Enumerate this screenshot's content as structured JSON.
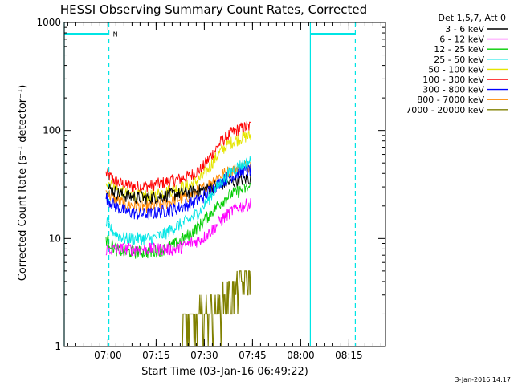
{
  "chart_data": {
    "type": "line",
    "title": "HESSI Observing Summary Count Rates, Corrected",
    "xlabel": "Start Time (03-Jan-16 06:49:22)",
    "ylabel": "Corrected Count Rate (s⁻¹ detector⁻¹)",
    "footer_date": "3-Jan-2016 14:17",
    "y_scale": "log",
    "ylim": [
      1,
      1000
    ],
    "xlim_minutes": [
      -3,
      97
    ],
    "y_ticks": [
      {
        "value": 1,
        "label": "1"
      },
      {
        "value": 10,
        "label": "10"
      },
      {
        "value": 100,
        "label": "100"
      },
      {
        "value": 1000,
        "label": "1000"
      }
    ],
    "x_ticks": [
      {
        "minute": 10.6,
        "label": "07:00"
      },
      {
        "minute": 25.6,
        "label": "07:15"
      },
      {
        "minute": 40.6,
        "label": "07:30"
      },
      {
        "minute": 55.6,
        "label": "07:45"
      },
      {
        "minute": 70.6,
        "label": "08:00"
      },
      {
        "minute": 85.6,
        "label": "08:15"
      }
    ],
    "legend": {
      "header": "Det 1,5,7, Att 0",
      "position": "right",
      "entries": [
        {
          "label": "3 - 6 keV",
          "color": "#000000"
        },
        {
          "label": "6 - 12 keV",
          "color": "#ff00ff"
        },
        {
          "label": "12 - 25 keV",
          "color": "#00cc00"
        },
        {
          "label": "25 - 50 keV",
          "color": "#00e5e5"
        },
        {
          "label": "50 - 100 keV",
          "color": "#e5e500"
        },
        {
          "label": "100 - 300 keV",
          "color": "#ff0000"
        },
        {
          "label": "300 - 800 keV",
          "color": "#0000ff"
        },
        {
          "label": "800 - 7000 keV",
          "color": "#ff8800"
        },
        {
          "label": "7000 - 20000 keV",
          "color": "#808000"
        }
      ]
    },
    "series": [
      {
        "color": "#ff0000",
        "x": [
          10,
          13,
          16,
          20,
          24,
          28,
          32,
          36,
          40,
          43,
          46,
          49,
          52,
          55
        ],
        "y": [
          40,
          34,
          31,
          30,
          31,
          33,
          35,
          38,
          45,
          60,
          80,
          95,
          105,
          110
        ]
      },
      {
        "color": "#e5e500",
        "x": [
          10,
          13,
          16,
          20,
          24,
          28,
          32,
          36,
          40,
          43,
          46,
          49,
          52,
          55
        ],
        "y": [
          35,
          29,
          26,
          25,
          25,
          27,
          29,
          31,
          37,
          50,
          66,
          78,
          86,
          90
        ]
      },
      {
        "color": "#ff8800",
        "x": [
          10,
          13,
          16,
          20,
          24,
          28,
          32,
          36,
          40,
          43,
          46,
          49,
          52,
          55
        ],
        "y": [
          27,
          23,
          21,
          20,
          20,
          21,
          23,
          25,
          29,
          34,
          39,
          43,
          46,
          48
        ]
      },
      {
        "color": "#000000",
        "x": [
          10,
          13,
          16,
          20,
          24,
          28,
          32,
          36,
          40,
          43,
          46,
          49,
          52,
          55
        ],
        "y": [
          30,
          27,
          25,
          24,
          24,
          25,
          26,
          27,
          28,
          30,
          32,
          33,
          35,
          36
        ]
      },
      {
        "color": "#0000ff",
        "x": [
          10,
          13,
          16,
          20,
          24,
          28,
          32,
          36,
          40,
          43,
          46,
          49,
          52,
          55
        ],
        "y": [
          24,
          20,
          18,
          17,
          17,
          18,
          19,
          21,
          24,
          29,
          34,
          38,
          41,
          43
        ]
      },
      {
        "color": "#00e5e5",
        "x": [
          10,
          13,
          16,
          20,
          24,
          28,
          32,
          36,
          40,
          43,
          46,
          49,
          52,
          55
        ],
        "y": [
          14,
          11,
          10,
          10,
          10,
          11,
          13,
          15,
          19,
          26,
          34,
          42,
          48,
          52
        ]
      },
      {
        "color": "#00cc00",
        "x": [
          10,
          13,
          16,
          20,
          24,
          28,
          32,
          36,
          40,
          43,
          46,
          49,
          52,
          55
        ],
        "y": [
          10,
          8,
          7.5,
          7.5,
          7.5,
          8,
          9,
          11,
          14,
          18,
          22,
          26,
          28,
          30
        ]
      },
      {
        "color": "#ff00ff",
        "x": [
          10,
          13,
          16,
          20,
          24,
          28,
          32,
          36,
          40,
          43,
          46,
          49,
          52,
          55
        ],
        "y": [
          8,
          8,
          8,
          8,
          8,
          8,
          8,
          9,
          10,
          12,
          15,
          18,
          20,
          21
        ]
      },
      {
        "color": "#808000",
        "x": [
          33,
          36,
          39,
          42,
          44,
          46,
          48,
          50,
          52,
          54,
          55
        ],
        "y": [
          1.2,
          1.5,
          1.8,
          2.0,
          2.2,
          2.5,
          2.8,
          3.2,
          3.6,
          3.9,
          4.0
        ]
      }
    ],
    "markers": [
      {
        "kind": "solid-vertical",
        "minute": -3
      },
      {
        "kind": "dashed-vertical",
        "minute": 10.9
      },
      {
        "kind": "solid-vertical",
        "minute": 73.6
      },
      {
        "kind": "dashed-vertical",
        "minute": 87.6
      },
      {
        "kind": "horizontal-bar",
        "from": -3,
        "to": 10.9,
        "y": 780,
        "label": "N"
      },
      {
        "kind": "horizontal-bar",
        "from": 73.6,
        "to": 87.6,
        "y": 780,
        "label": ""
      }
    ],
    "grid": false
  }
}
